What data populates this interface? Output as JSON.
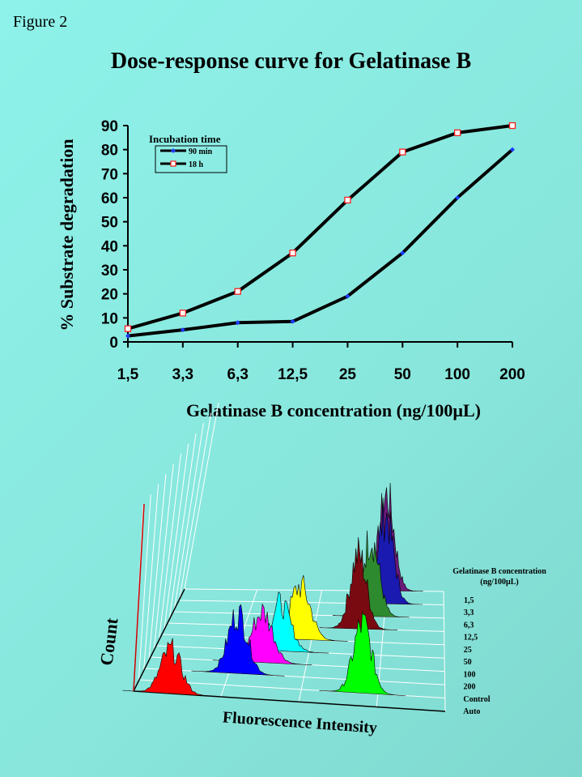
{
  "figure_label": "Figure 2",
  "chart_data": [
    {
      "type": "line",
      "title": "Dose-response curve for Gelatinase B",
      "xlabel": "Gelatinase B concentration (ng/100µL)",
      "ylabel": "% Substrate degradation",
      "categories": [
        "1,5",
        "3,3",
        "6,3",
        "12,5",
        "25",
        "50",
        "100",
        "200"
      ],
      "ylim": [
        0,
        90
      ],
      "yticks": [
        "0",
        "10",
        "20",
        "30",
        "40",
        "50",
        "60",
        "70",
        "80",
        "90"
      ],
      "legend": {
        "title": "Incubation time",
        "placement": "top-left"
      },
      "series": [
        {
          "name": "90 min",
          "marker": "diamond",
          "marker_color": "#1a3cff",
          "values": [
            2.5,
            5,
            8,
            8.5,
            19,
            37,
            60,
            80
          ]
        },
        {
          "name": "18 h",
          "marker": "square",
          "marker_color": "#ff2020",
          "values": [
            5.5,
            12,
            21,
            37,
            59,
            79,
            87,
            90
          ]
        }
      ],
      "grid": false
    },
    {
      "type": "area",
      "subtype": "3d-histogram-stack",
      "xlabel": "Fluorescence Intensity",
      "ylabel": "Count",
      "legend": {
        "title": "Gelatinase B concentration",
        "title_unit": "(ng/100µL)",
        "placement": "right"
      },
      "series": [
        {
          "name": "1,5",
          "color": "#6a1a7a"
        },
        {
          "name": "3,3",
          "color": "#1a1ab0"
        },
        {
          "name": "6,3",
          "color": "#2e8a2e"
        },
        {
          "name": "12,5",
          "color": "#7a0a12"
        },
        {
          "name": "25",
          "color": "#ffff00"
        },
        {
          "name": "50",
          "color": "#00ffff"
        },
        {
          "name": "100",
          "color": "#ff00ff"
        },
        {
          "name": "200",
          "color": "#0000ff"
        },
        {
          "name": "Control",
          "color": "#00ff00"
        },
        {
          "name": "Auto",
          "color": "#ff0000"
        }
      ]
    }
  ]
}
